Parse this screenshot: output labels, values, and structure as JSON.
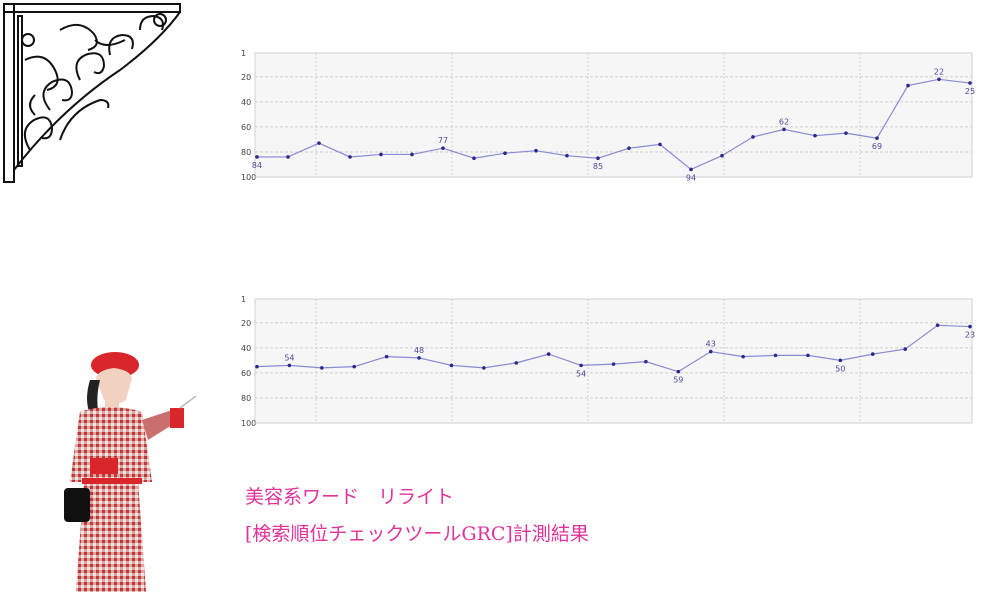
{
  "chart_data": [
    {
      "type": "line",
      "ylim": [
        1,
        100
      ],
      "y_inverted": true,
      "yticks": [
        1,
        20,
        40,
        60,
        80,
        100
      ],
      "grid": true,
      "color": "#8a8ad6",
      "marker_color": "#2a2a8a",
      "values": [
        84,
        84,
        73,
        84,
        82,
        82,
        77,
        85,
        81,
        79,
        83,
        85,
        77,
        74,
        94,
        83,
        68,
        62,
        67,
        65,
        69,
        27,
        22,
        25
      ],
      "value_labels": [
        "84",
        null,
        null,
        null,
        null,
        null,
        "77",
        null,
        null,
        null,
        null,
        "85",
        null,
        null,
        "94",
        null,
        null,
        "62",
        null,
        null,
        "69",
        null,
        "22",
        "25"
      ]
    },
    {
      "type": "line",
      "ylim": [
        1,
        100
      ],
      "y_inverted": true,
      "yticks": [
        1,
        20,
        40,
        60,
        80,
        100
      ],
      "grid": true,
      "color": "#8a8ad6",
      "marker_color": "#2a2a8a",
      "values": [
        55,
        54,
        56,
        55,
        47,
        48,
        54,
        56,
        52,
        45,
        54,
        53,
        51,
        59,
        43,
        47,
        46,
        46,
        50,
        45,
        41,
        22,
        23
      ],
      "value_labels": [
        null,
        "54",
        null,
        null,
        null,
        "48",
        null,
        null,
        null,
        null,
        "54",
        null,
        null,
        "59",
        "43",
        null,
        null,
        null,
        "50",
        null,
        null,
        null,
        "23"
      ]
    }
  ],
  "caption": {
    "line1": "美容系ワード　リライト",
    "line2": "[検索順位チェックツールGRC]計測結果"
  }
}
